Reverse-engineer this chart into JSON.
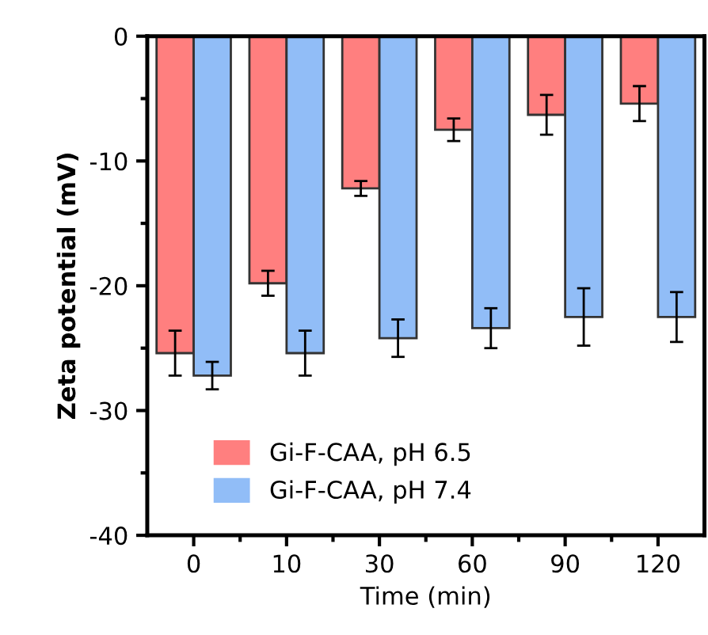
{
  "chart_data": {
    "type": "bar",
    "xlabel": "Time (min)",
    "ylabel": "Zeta potential (mV)",
    "categories": [
      "0",
      "10",
      "30",
      "60",
      "90",
      "120"
    ],
    "series": [
      {
        "name": "Gi-F-CAA, pH 6.5",
        "color": "#ff7f7f",
        "values": [
          -25.4,
          -19.8,
          -12.2,
          -7.5,
          -6.3,
          -5.4
        ],
        "errors": [
          1.8,
          1.0,
          0.6,
          0.9,
          1.6,
          1.4
        ]
      },
      {
        "name": "Gi-F-CAA, pH 7.4",
        "color": "#91bdf7",
        "values": [
          -27.2,
          -25.4,
          -24.2,
          -23.4,
          -22.5,
          -22.5
        ],
        "errors": [
          1.1,
          1.8,
          1.5,
          1.6,
          2.3,
          2.0
        ]
      }
    ],
    "ylim": [
      -40,
      0
    ],
    "yticks": [
      -40,
      -30,
      -20,
      -10,
      0
    ],
    "grid": false,
    "legend": "bottom left"
  }
}
